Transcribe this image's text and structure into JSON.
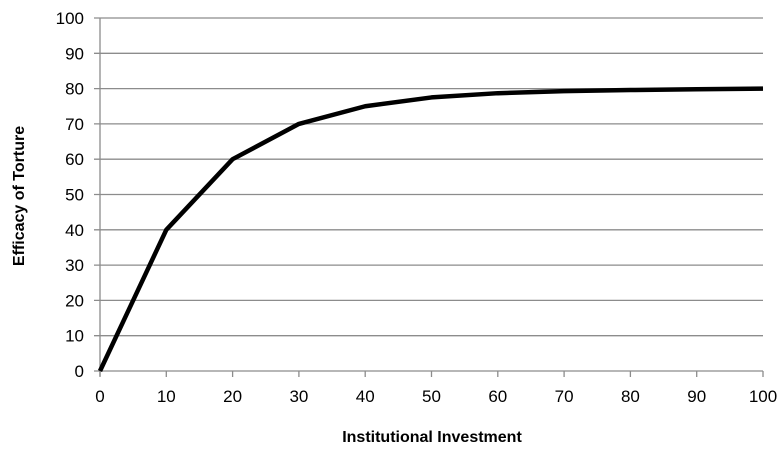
{
  "chart_data": {
    "type": "line",
    "title": "",
    "xlabel": "Institutional Investment",
    "ylabel": "Efficacy of Torture",
    "xlim": [
      0,
      100
    ],
    "ylim": [
      0,
      100
    ],
    "x_ticks": [
      "0",
      "10",
      "20",
      "30",
      "40",
      "50",
      "60",
      "70",
      "80",
      "90",
      "100"
    ],
    "y_ticks": [
      "0",
      "10",
      "20",
      "30",
      "40",
      "50",
      "60",
      "70",
      "80",
      "90",
      "100"
    ],
    "grid": "horizontal",
    "legend": "none",
    "series": [
      {
        "color": "#000000",
        "x": [
          0,
          10,
          20,
          30,
          40,
          50,
          60,
          70,
          80,
          90,
          100
        ],
        "y": [
          0,
          40,
          60,
          70,
          75,
          77.5,
          78.7,
          79.3,
          79.6,
          79.8,
          80
        ]
      }
    ]
  }
}
